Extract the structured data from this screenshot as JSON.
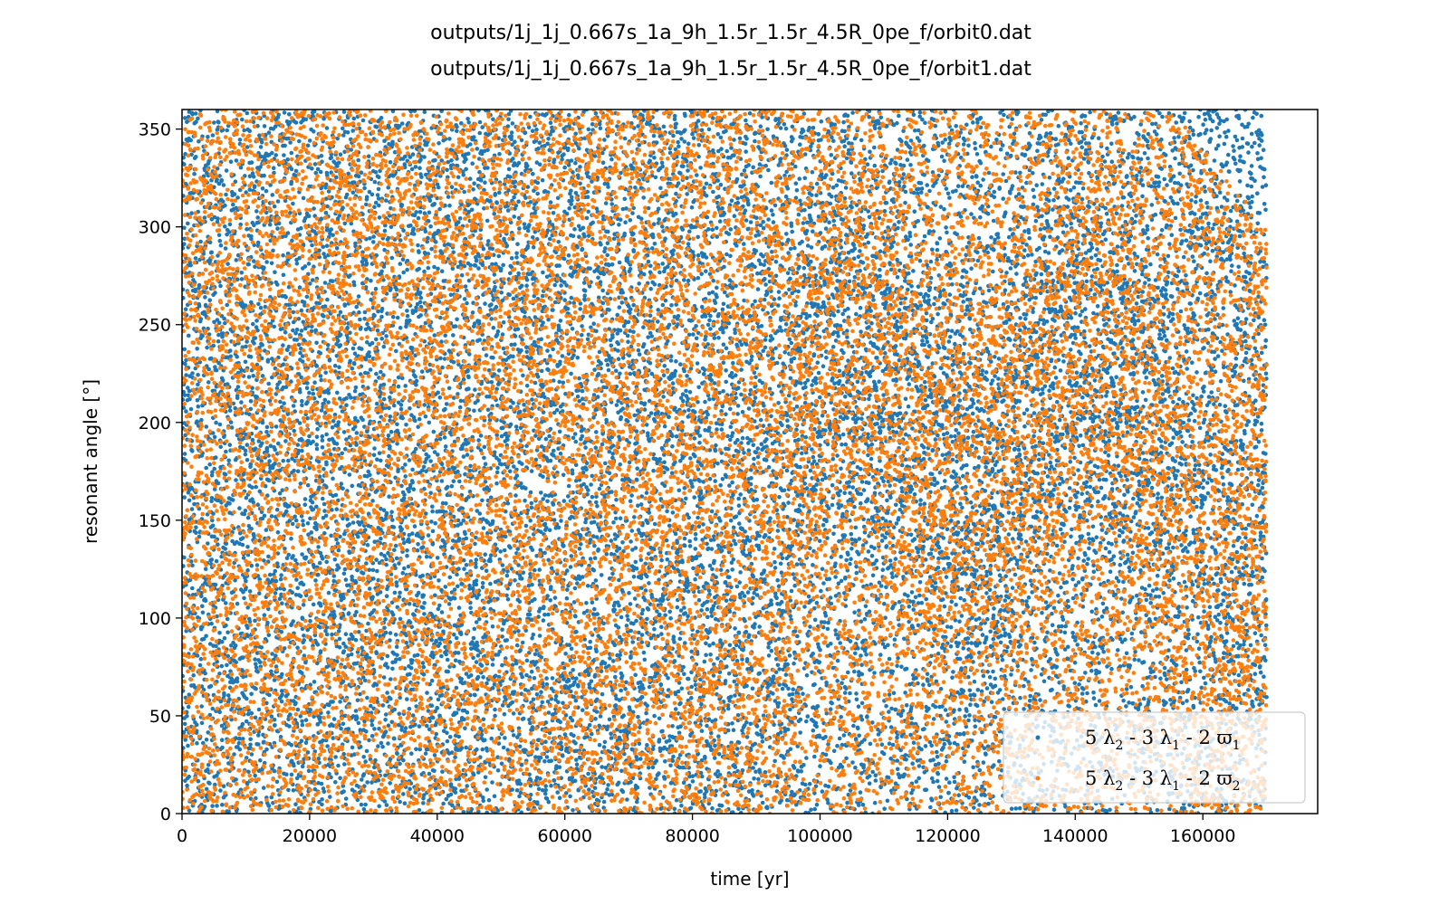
{
  "chart_data": {
    "type": "scatter",
    "title": [
      "outputs/1j_1j_0.667s_1a_9h_1.5r_1.5r_4.5R_0pe_f/orbit0.dat",
      "outputs/1j_1j_0.667s_1a_9h_1.5r_1.5r_4.5R_0pe_f/orbit1.dat"
    ],
    "xlabel": "time [yr]",
    "ylabel": "resonant angle [°]",
    "xlim": [
      0,
      178000
    ],
    "ylim": [
      0,
      360
    ],
    "x_ticks": [
      0,
      20000,
      40000,
      60000,
      80000,
      100000,
      120000,
      140000,
      160000
    ],
    "x_tick_labels": [
      "0",
      "20000",
      "40000",
      "60000",
      "80000",
      "100000",
      "120000",
      "140000",
      "160000"
    ],
    "y_ticks": [
      0,
      50,
      100,
      150,
      200,
      250,
      300,
      350
    ],
    "y_tick_labels": [
      "0",
      "50",
      "100",
      "150",
      "200",
      "250",
      "300",
      "350"
    ],
    "x_data_range": [
      0,
      170000
    ],
    "grid": false,
    "legend_position": "bottom-right",
    "series": [
      {
        "name": "5 λ2 - 3 λ1 - 2 ϖ1",
        "color": "#1f77b4",
        "x_range": [
          0,
          170000
        ],
        "y_range": [
          0,
          360
        ]
      },
      {
        "name": "5 λ2 - 3 λ1 - 2 ϖ2",
        "color": "#ff7f0e",
        "x_range": [
          0,
          170000
        ],
        "y_range": [
          0,
          360
        ]
      }
    ]
  }
}
